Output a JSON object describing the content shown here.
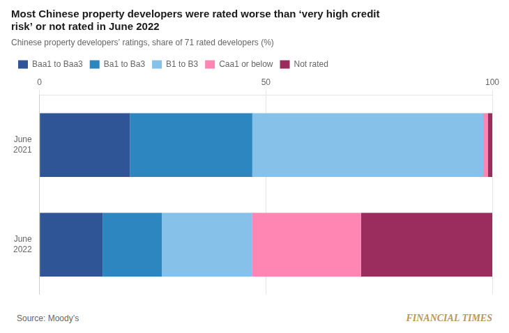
{
  "chart_data": {
    "type": "bar",
    "orientation": "horizontal",
    "stacked": true,
    "title": "Most Chinese property developers were rated worse than ‘very high credit\nrisk’ or not rated in June 2022",
    "subtitle": "Chinese property developers’ ratings, share of 71 rated developers (%)",
    "categories": [
      "June\n2021",
      "June\n2022"
    ],
    "series": [
      {
        "name": "Baa1 to Baa3",
        "color": "#2f5597",
        "values": [
          20,
          14
        ]
      },
      {
        "name": "Ba1 to Ba3",
        "color": "#2e86c1",
        "values": [
          27,
          13
        ]
      },
      {
        "name": "B1 to B3",
        "color": "#85c1e9",
        "values": [
          51,
          20
        ]
      },
      {
        "name": "Caa1 or below",
        "color": "#ff85b3",
        "values": [
          1,
          24
        ]
      },
      {
        "name": "Not rated",
        "color": "#9b2c5e",
        "values": [
          1,
          29
        ]
      }
    ],
    "xlim": [
      0,
      100
    ],
    "xticks": [
      0,
      50,
      100
    ],
    "grid": true,
    "legend": "top",
    "annotations": [
      "Source: Moody’s",
      "FINANCIAL TIMES"
    ]
  }
}
